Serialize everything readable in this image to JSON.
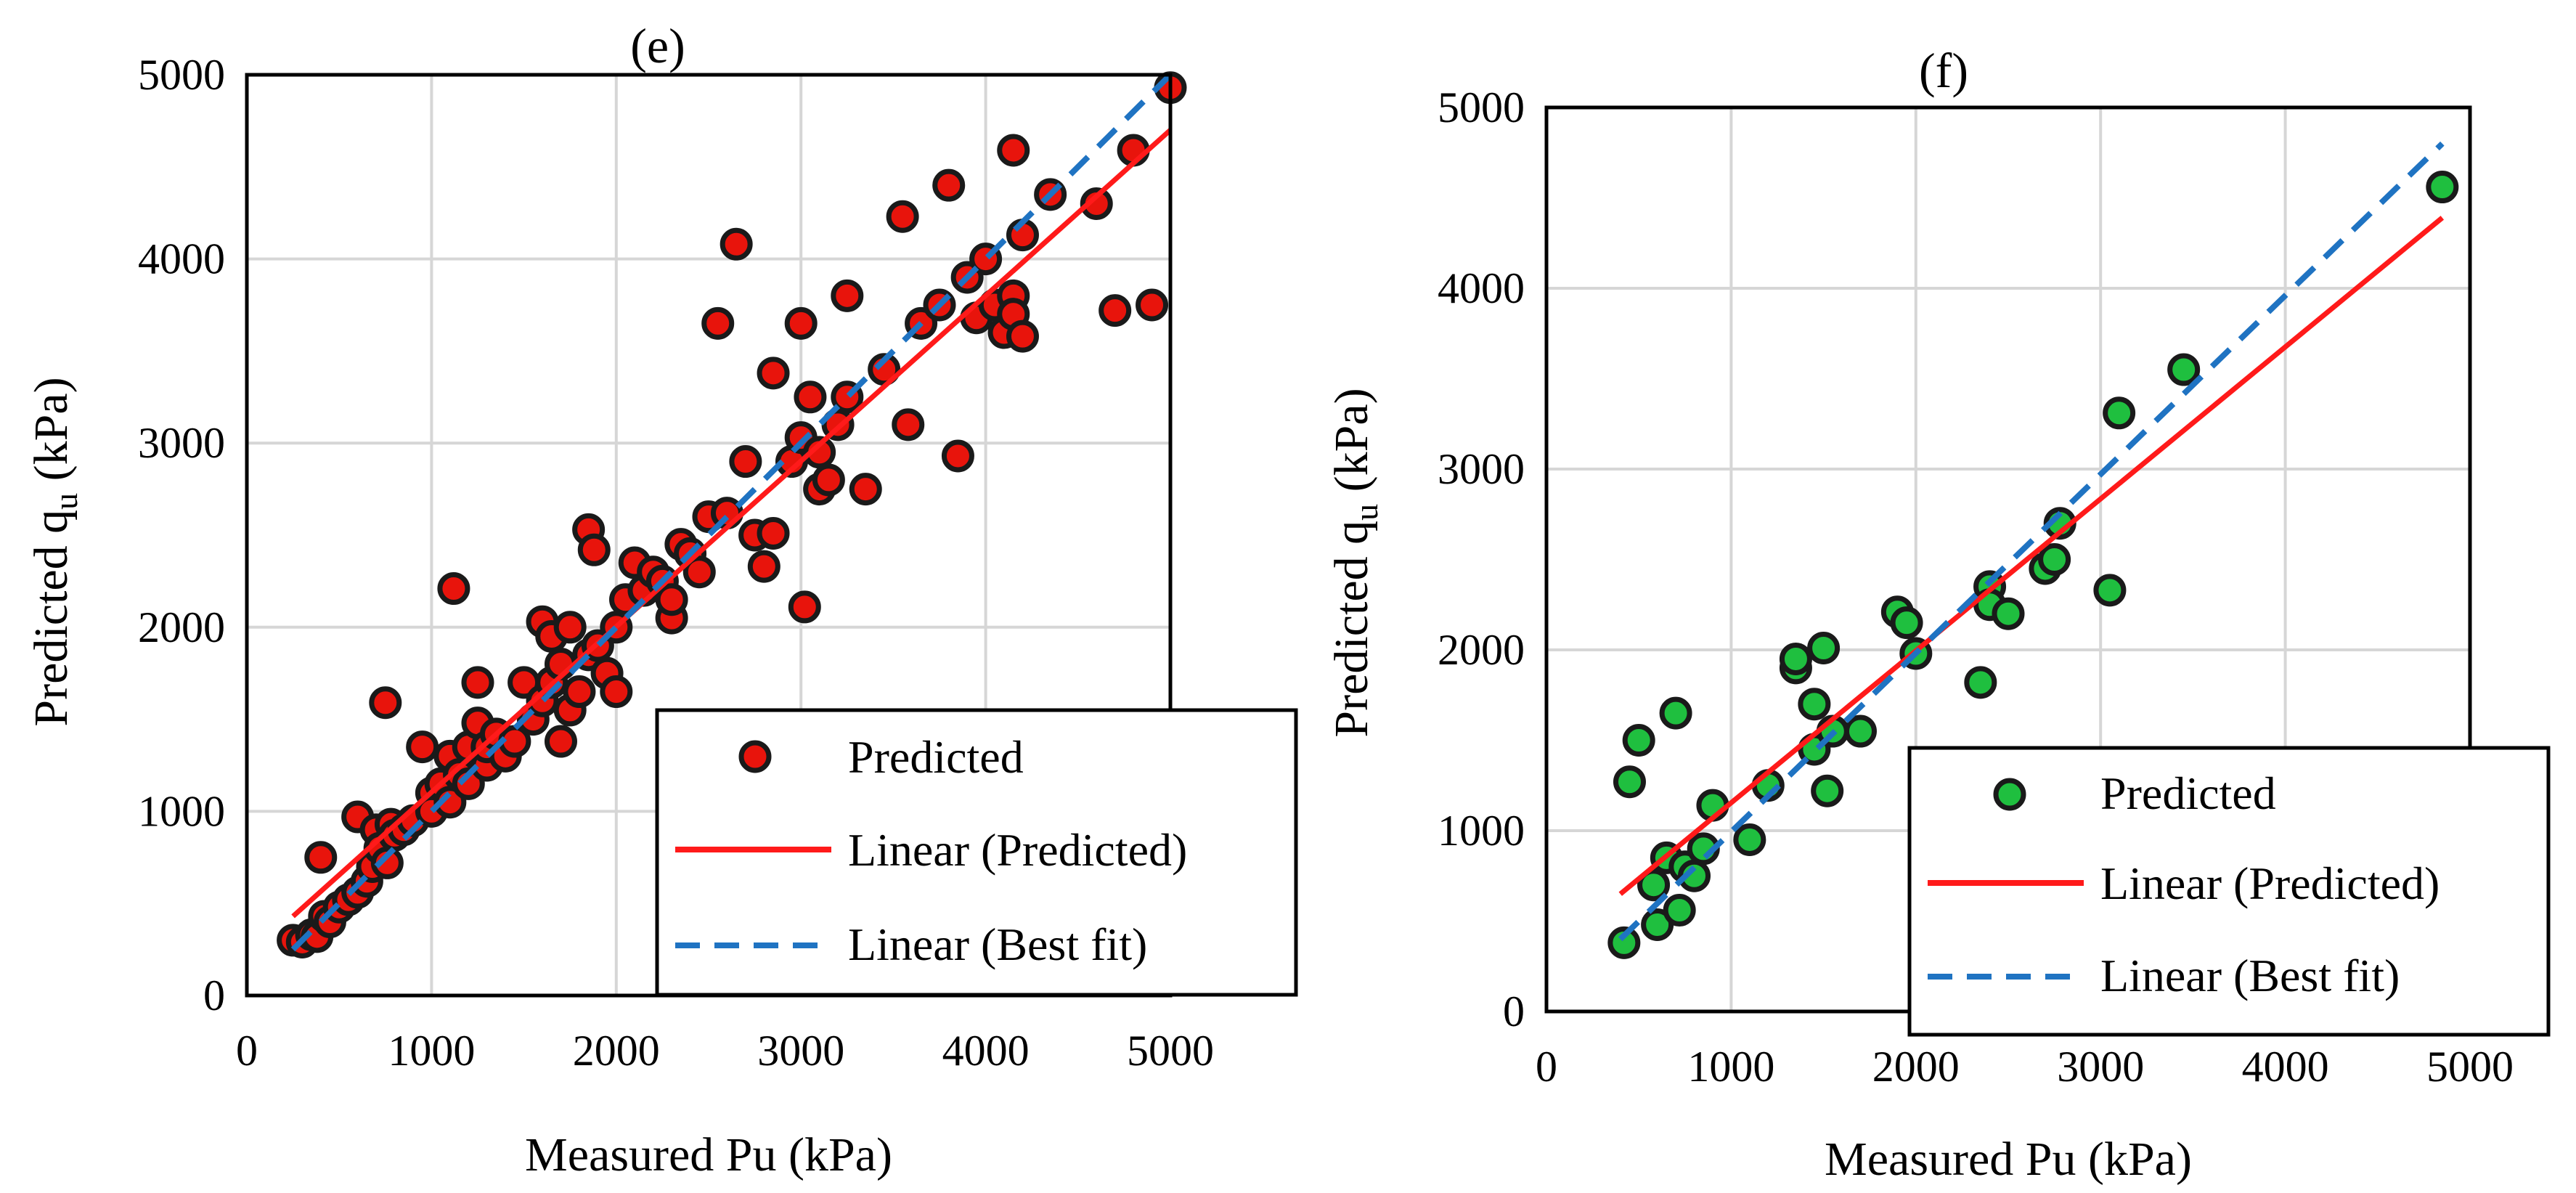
{
  "colors": {
    "predicted_fill_e": "#e8140c",
    "predicted_fill_f": "#1fbf3f",
    "predicted_stroke": "#1a1a1a",
    "linear_predicted": "#ff1a1a",
    "best_fit": "#1f73c2",
    "grid": "#d6d6d6",
    "axis": "#000000"
  },
  "chart_data": [
    {
      "type": "scatter",
      "title": "(e)",
      "xlabel": "Measured Pu (kPa)",
      "ylabel": "Predicted q",
      "ylabel_subscript": "u",
      "ylabel_suffix": " (kPa)",
      "xlim": [
        0,
        5000
      ],
      "ylim": [
        0,
        5000
      ],
      "xticks": [
        "0",
        "1000",
        "2000",
        "3000",
        "4000",
        "5000"
      ],
      "yticks": [
        "0",
        "1000",
        "2000",
        "3000",
        "4000",
        "5000"
      ],
      "grid": true,
      "legend_position": "bottom-right",
      "legend": [
        "Predicted",
        "Linear (Predicted)",
        "Linear (Best fit)"
      ],
      "series": [
        {
          "name": "Predicted",
          "points": [
            [
              250,
              300
            ],
            [
              300,
              290
            ],
            [
              350,
              330
            ],
            [
              380,
              320
            ],
            [
              400,
              750
            ],
            [
              420,
              430
            ],
            [
              450,
              400
            ],
            [
              500,
              480
            ],
            [
              550,
              520
            ],
            [
              600,
              560
            ],
            [
              600,
              970
            ],
            [
              650,
              620
            ],
            [
              680,
              700
            ],
            [
              700,
              900
            ],
            [
              720,
              800
            ],
            [
              750,
              1590
            ],
            [
              760,
              720
            ],
            [
              780,
              930
            ],
            [
              800,
              870
            ],
            [
              850,
              900
            ],
            [
              900,
              950
            ],
            [
              950,
              1350
            ],
            [
              1000,
              1100
            ],
            [
              1000,
              1000
            ],
            [
              1050,
              1150
            ],
            [
              1100,
              1300
            ],
            [
              1100,
              1050
            ],
            [
              1120,
              2210
            ],
            [
              1150,
              1200
            ],
            [
              1200,
              1350
            ],
            [
              1200,
              1150
            ],
            [
              1250,
              1700
            ],
            [
              1250,
              1480
            ],
            [
              1300,
              1250
            ],
            [
              1300,
              1350
            ],
            [
              1350,
              1420
            ],
            [
              1400,
              1300
            ],
            [
              1450,
              1380
            ],
            [
              1500,
              1700
            ],
            [
              1550,
              1500
            ],
            [
              1600,
              2030
            ],
            [
              1600,
              1600
            ],
            [
              1650,
              1950
            ],
            [
              1650,
              1700
            ],
            [
              1700,
              1380
            ],
            [
              1700,
              1800
            ],
            [
              1750,
              1550
            ],
            [
              1750,
              2000
            ],
            [
              1800,
              1650
            ],
            [
              1850,
              1850
            ],
            [
              1850,
              2530
            ],
            [
              1880,
              2420
            ],
            [
              1900,
              1900
            ],
            [
              1950,
              1750
            ],
            [
              2000,
              2000
            ],
            [
              2000,
              1650
            ],
            [
              2050,
              2150
            ],
            [
              2100,
              2350
            ],
            [
              2150,
              2200
            ],
            [
              2200,
              2300
            ],
            [
              2250,
              2250
            ],
            [
              2300,
              2050
            ],
            [
              2300,
              2150
            ],
            [
              2350,
              2450
            ],
            [
              2400,
              2400
            ],
            [
              2450,
              2300
            ],
            [
              2500,
              2600
            ],
            [
              2550,
              3650
            ],
            [
              2600,
              2620
            ],
            [
              2650,
              4080
            ],
            [
              2700,
              2900
            ],
            [
              2750,
              2500
            ],
            [
              2800,
              2330
            ],
            [
              2850,
              3380
            ],
            [
              2850,
              2510
            ],
            [
              2950,
              2900
            ],
            [
              3000,
              3650
            ],
            [
              3000,
              3030
            ],
            [
              3020,
              2110
            ],
            [
              3050,
              3250
            ],
            [
              3100,
              2750
            ],
            [
              3100,
              2950
            ],
            [
              3150,
              2800
            ],
            [
              3200,
              3100
            ],
            [
              3250,
              3800
            ],
            [
              3250,
              3250
            ],
            [
              3350,
              2750
            ],
            [
              3450,
              3400
            ],
            [
              3550,
              4230
            ],
            [
              3580,
              3100
            ],
            [
              3650,
              3650
            ],
            [
              3750,
              3750
            ],
            [
              3800,
              4400
            ],
            [
              3850,
              2930
            ],
            [
              3900,
              3900
            ],
            [
              3950,
              3680
            ],
            [
              4000,
              4000
            ],
            [
              4050,
              3750
            ],
            [
              4100,
              3600
            ],
            [
              4150,
              4590
            ],
            [
              4150,
              3800
            ],
            [
              4150,
              3700
            ],
            [
              4200,
              3580
            ],
            [
              4200,
              4130
            ],
            [
              4350,
              4350
            ],
            [
              4600,
              4300
            ],
            [
              4700,
              3720
            ],
            [
              4800,
              4590
            ],
            [
              4900,
              3750
            ],
            [
              5000,
              4930
            ]
          ]
        },
        {
          "name": "Linear (Predicted)",
          "line": [
            [
              250,
              430
            ],
            [
              5000,
              4700
            ]
          ]
        },
        {
          "name": "Linear (Best fit)",
          "line": [
            [
              250,
              250
            ],
            [
              5000,
              5000
            ]
          ]
        }
      ]
    },
    {
      "type": "scatter",
      "title": "(f)",
      "xlabel": "Measured Pu (kPa)",
      "ylabel": "Predicted q",
      "ylabel_subscript": "u",
      "ylabel_suffix": " (kPa)",
      "xlim": [
        0,
        5000
      ],
      "ylim": [
        0,
        5000
      ],
      "xticks": [
        "0",
        "1000",
        "2000",
        "3000",
        "4000",
        "5000"
      ],
      "yticks": [
        "0",
        "1000",
        "2000",
        "3000",
        "4000",
        "5000"
      ],
      "grid": true,
      "legend_position": "bottom-right",
      "legend": [
        "Predicted",
        "Linear (Predicted)",
        "Linear (Best fit)"
      ],
      "series": [
        {
          "name": "Predicted",
          "points": [
            [
              420,
              380
            ],
            [
              450,
              1270
            ],
            [
              500,
              1500
            ],
            [
              580,
              700
            ],
            [
              600,
              480
            ],
            [
              650,
              850
            ],
            [
              700,
              1650
            ],
            [
              720,
              560
            ],
            [
              750,
              800
            ],
            [
              800,
              750
            ],
            [
              850,
              900
            ],
            [
              900,
              1140
            ],
            [
              1100,
              950
            ],
            [
              1200,
              1250
            ],
            [
              1350,
              1900
            ],
            [
              1350,
              1950
            ],
            [
              1450,
              1700
            ],
            [
              1450,
              1450
            ],
            [
              1500,
              2010
            ],
            [
              1520,
              1220
            ],
            [
              1550,
              1550
            ],
            [
              1700,
              1550
            ],
            [
              1900,
              2210
            ],
            [
              1950,
              2150
            ],
            [
              2000,
              1980
            ],
            [
              2350,
              1820
            ],
            [
              2400,
              2350
            ],
            [
              2400,
              2250
            ],
            [
              2500,
              2200
            ],
            [
              2700,
              2450
            ],
            [
              2750,
              2500
            ],
            [
              2780,
              2700
            ],
            [
              3050,
              2330
            ],
            [
              3100,
              3310
            ],
            [
              3450,
              3550
            ],
            [
              4850,
              4560
            ]
          ]
        },
        {
          "name": "Linear (Predicted)",
          "line": [
            [
              400,
              650
            ],
            [
              4850,
              4390
            ]
          ]
        },
        {
          "name": "Linear (Best fit)",
          "line": [
            [
              400,
              400
            ],
            [
              4850,
              4800
            ]
          ]
        }
      ]
    }
  ]
}
